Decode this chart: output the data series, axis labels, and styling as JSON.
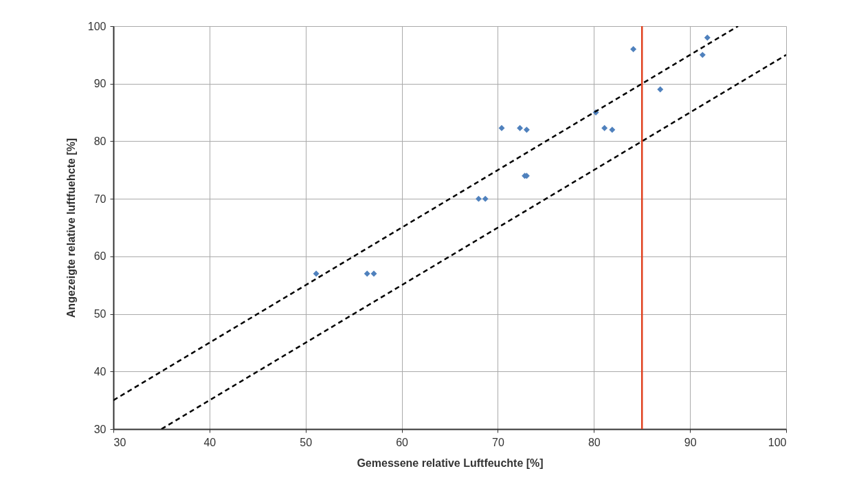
{
  "chart_data": {
    "type": "scatter",
    "xlabel": "Gemessene relative Luftfeuchte [%]",
    "ylabel": "Angezeigte relative luftfuehcte [%]",
    "xlim": [
      30,
      100
    ],
    "ylim": [
      30,
      100
    ],
    "xticks": [
      30,
      40,
      50,
      60,
      70,
      80,
      90,
      100
    ],
    "yticks": [
      30,
      40,
      50,
      60,
      70,
      80,
      90,
      100
    ],
    "grid": true,
    "series": [
      {
        "color": "#4f81bd",
        "marker": "diamond",
        "x": [
          51.1,
          56.4,
          57.1,
          68.0,
          68.7,
          70.4,
          72.3,
          73.0,
          72.8,
          73.0,
          80.2,
          81.1,
          81.9,
          84.1,
          86.9,
          91.3,
          91.8
        ],
        "values": [
          57,
          57,
          57,
          70,
          70,
          82.3,
          82.3,
          82.0,
          74.0,
          74.0,
          85.0,
          82.3,
          82.0,
          96,
          89,
          95,
          98
        ]
      },
      {
        "type": "line",
        "color": "#000000",
        "line_style": "dashed",
        "x": [
          30,
          95
        ],
        "values": [
          35,
          100
        ]
      },
      {
        "type": "line",
        "color": "#000000",
        "line_style": "dashed",
        "x": [
          35,
          100
        ],
        "values": [
          30,
          95
        ]
      }
    ],
    "ref_lines": [
      {
        "axis": "x",
        "value": 85,
        "color": "#e0401e",
        "line_style": "solid"
      }
    ]
  }
}
